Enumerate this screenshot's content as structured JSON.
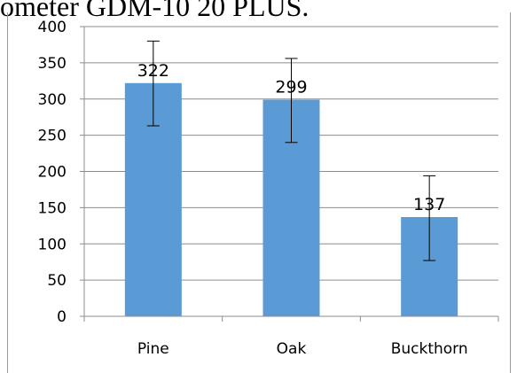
{
  "caption": "ometer GDM-10 20 PLUS.",
  "chart_data": {
    "type": "bar",
    "categories": [
      "Pine",
      "Oak",
      "Buckthorn"
    ],
    "values": [
      322,
      299,
      137
    ],
    "error_low": [
      263,
      240,
      77
    ],
    "error_high": [
      380,
      356,
      194
    ],
    "data_labels": [
      "322",
      "299",
      "137"
    ],
    "yticks": [
      0,
      50,
      100,
      150,
      200,
      250,
      300,
      350,
      400
    ],
    "ylim": [
      0,
      400
    ],
    "grid": true,
    "legend": "none",
    "bar_color": "#5B9BD5",
    "grid_color": "#8c8c8c"
  }
}
